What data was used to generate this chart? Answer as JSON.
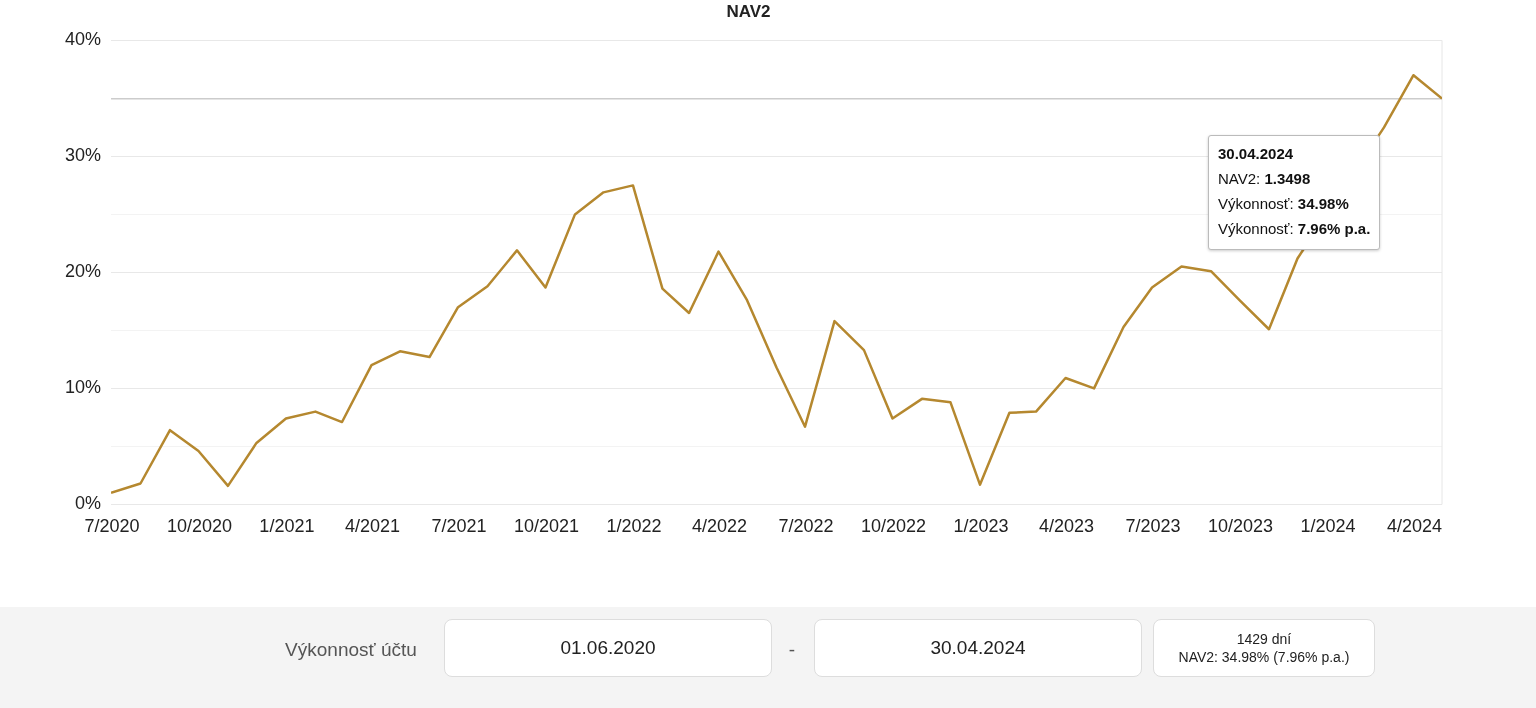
{
  "chart_data": {
    "type": "line",
    "title": "NAV2",
    "x": [
      "2020-06-30",
      "2020-07-31",
      "2020-08-31",
      "2020-09-30",
      "2020-10-31",
      "2020-11-30",
      "2020-12-31",
      "2021-01-31",
      "2021-02-28",
      "2021-03-31",
      "2021-04-30",
      "2021-05-31",
      "2021-06-30",
      "2021-07-31",
      "2021-08-31",
      "2021-09-30",
      "2021-10-31",
      "2021-11-30",
      "2021-12-31",
      "2022-01-31",
      "2022-02-28",
      "2022-03-31",
      "2022-04-30",
      "2022-05-31",
      "2022-06-30",
      "2022-07-31",
      "2022-08-31",
      "2022-09-30",
      "2022-10-31",
      "2022-11-30",
      "2022-12-31",
      "2023-01-31",
      "2023-02-28",
      "2023-03-31",
      "2023-04-30",
      "2023-05-31",
      "2023-06-30",
      "2023-07-31",
      "2023-08-31",
      "2023-09-30",
      "2023-10-31",
      "2023-11-30",
      "2023-12-31",
      "2024-01-31",
      "2024-02-29",
      "2024-03-31",
      "2024-04-30"
    ],
    "series": [
      {
        "color": "#b5882f",
        "values": [
          1.0,
          1.8,
          6.4,
          4.6,
          1.6,
          5.3,
          7.4,
          8.0,
          7.1,
          12.0,
          13.2,
          12.7,
          17.0,
          18.8,
          21.9,
          18.7,
          25.0,
          26.9,
          27.5,
          18.6,
          16.5,
          21.8,
          17.6,
          11.8,
          6.7,
          15.8,
          13.3,
          7.4,
          9.1,
          8.8,
          1.7,
          7.9,
          8.0,
          10.9,
          10.0,
          15.3,
          18.7,
          20.5,
          20.1,
          17.6,
          15.1,
          21.2,
          null,
          null,
          32.5,
          37.0,
          34.98
        ]
      }
    ],
    "xlim": [
      "2020-06-30",
      "2024-04-30"
    ],
    "xticks": [
      {
        "value": "2020-07-01",
        "label": "7/2020"
      },
      {
        "value": "2020-10-01",
        "label": "10/2020"
      },
      {
        "value": "2021-01-01",
        "label": "1/2021"
      },
      {
        "value": "2021-04-01",
        "label": "4/2021"
      },
      {
        "value": "2021-07-01",
        "label": "7/2021"
      },
      {
        "value": "2021-10-01",
        "label": "10/2021"
      },
      {
        "value": "2022-01-01",
        "label": "1/2022"
      },
      {
        "value": "2022-04-01",
        "label": "4/2022"
      },
      {
        "value": "2022-07-01",
        "label": "7/2022"
      },
      {
        "value": "2022-10-01",
        "label": "10/2022"
      },
      {
        "value": "2023-01-01",
        "label": "1/2023"
      },
      {
        "value": "2023-04-01",
        "label": "4/2023"
      },
      {
        "value": "2023-07-01",
        "label": "7/2023"
      },
      {
        "value": "2023-10-01",
        "label": "10/2023"
      },
      {
        "value": "2024-01-01",
        "label": "1/2024"
      },
      {
        "value": "2024-04-01",
        "label": "4/2024"
      }
    ],
    "ylim": [
      0,
      40
    ],
    "yticks": [
      {
        "value": 0,
        "label": "0%"
      },
      {
        "value": 5,
        "label": null
      },
      {
        "value": 10,
        "label": "10%"
      },
      {
        "value": 15,
        "label": null
      },
      {
        "value": 20,
        "label": "20%"
      },
      {
        "value": 25,
        "label": null
      },
      {
        "value": 30,
        "label": "30%"
      },
      {
        "value": 35,
        "label": null
      },
      {
        "value": 40,
        "label": "40%"
      }
    ],
    "grid": "y",
    "legend": false,
    "marker": "none",
    "line_style": "solid",
    "ref_lines": [
      {
        "axis": "y",
        "value": 34.98,
        "color": "#cccccc"
      }
    ],
    "annotations": [
      "30.04.2024",
      "NAV2: 1.3498",
      "Výkonnosť: 34.98%",
      "Výkonnosť: 7.96% p.a.",
      "Výkonnosť účtu",
      "01.06.2020",
      "-",
      "30.04.2024",
      "1429 dní",
      "NAV2: 34.98% (7.96% p.a.)"
    ]
  }
}
